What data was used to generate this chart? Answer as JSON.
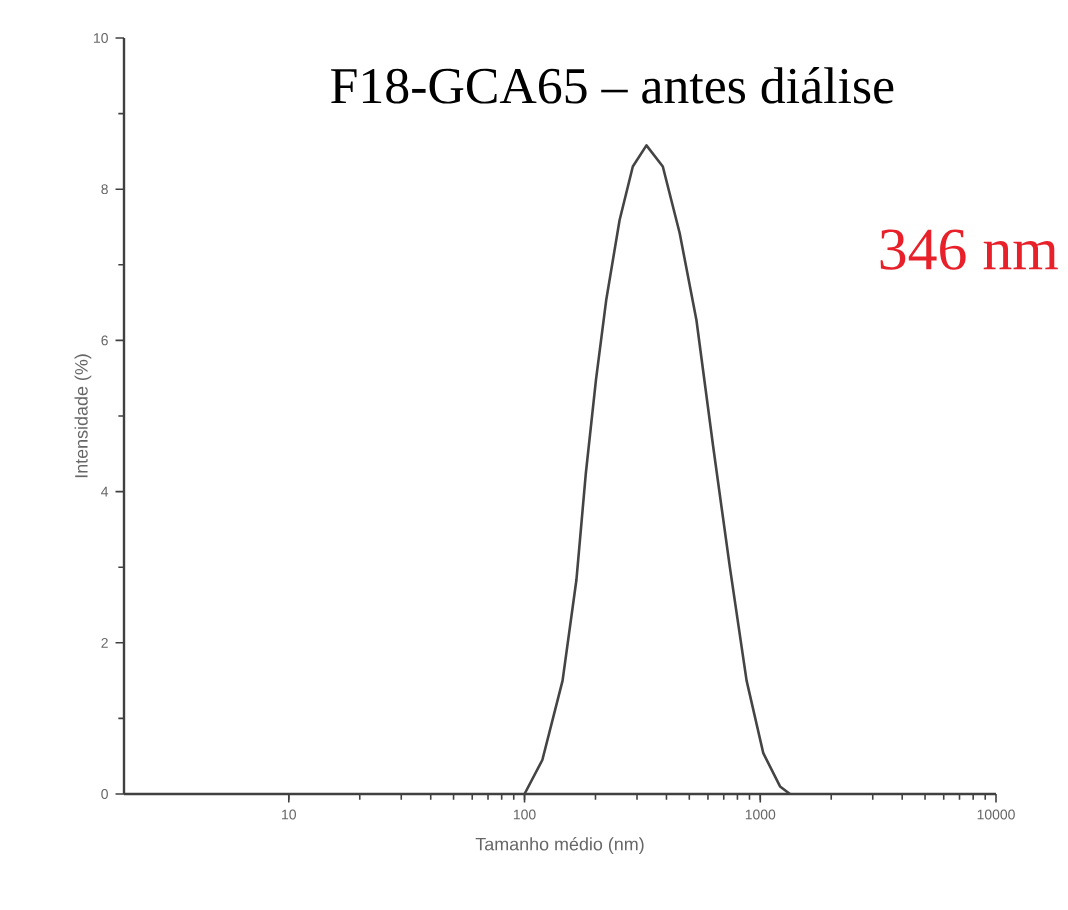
{
  "chart_data": {
    "type": "line",
    "title": "F18-GCA65 – antes diálise",
    "xlabel": "Tamanho médio (nm)",
    "ylabel": "Intensidade (%)",
    "x": [
      100,
      119,
      145,
      166,
      182,
      201,
      222,
      253,
      288,
      329,
      386,
      455,
      536,
      631,
      743,
      875,
      1030,
      1213,
      1337
    ],
    "values": [
      0,
      0.45,
      1.5,
      2.83,
      4.24,
      5.48,
      6.53,
      7.59,
      8.3,
      8.58,
      8.3,
      7.42,
      6.27,
      4.6,
      3.0,
      1.5,
      0.54,
      0.1,
      0
    ],
    "color": "#444444",
    "marker": "none",
    "line_style": "solid",
    "log": "x",
    "xlim": [
      2,
      10000
    ],
    "ylim": [
      0,
      10
    ],
    "xticks": [
      10,
      100,
      1000,
      10000
    ],
    "yticks": [
      0,
      2,
      4,
      6,
      8,
      10
    ],
    "annotations": [
      "346 nm"
    ]
  }
}
